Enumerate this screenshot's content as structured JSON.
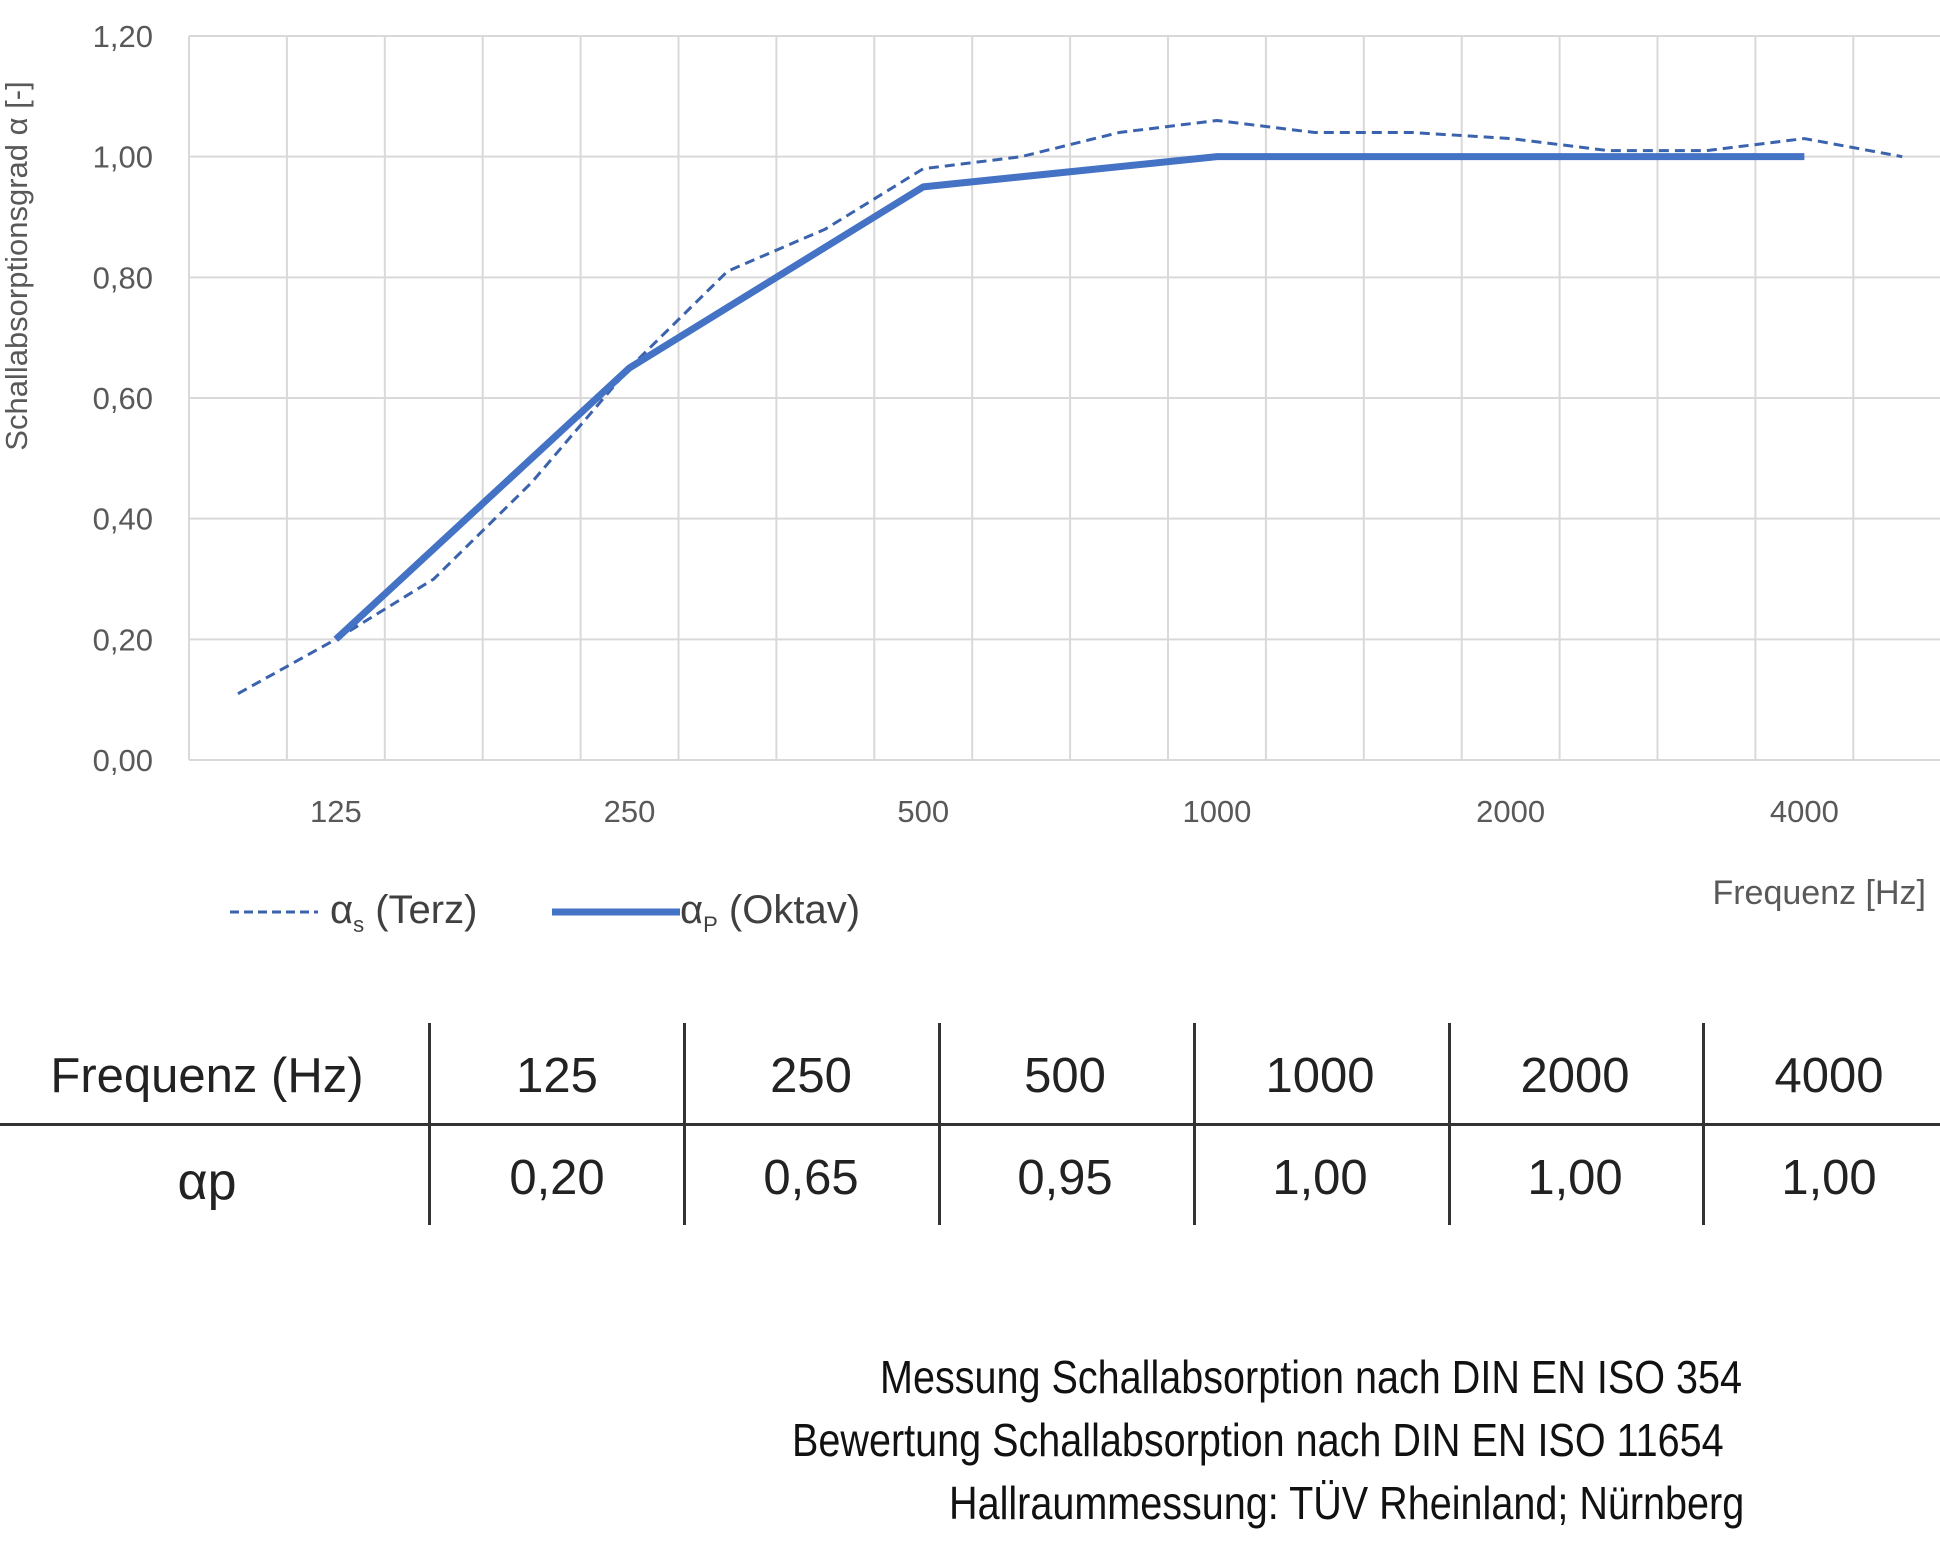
{
  "chart_data": {
    "type": "line",
    "xlabel": "Frequenz [Hz]",
    "ylabel": "Schallabsorptionsgrad α [-]",
    "ylim": [
      0,
      1.2
    ],
    "y_ticks": [
      "0,00",
      "0,20",
      "0,40",
      "0,60",
      "0,80",
      "1,00",
      "1,20"
    ],
    "x_scale": "third-octave bands (log)",
    "x_tick_labels": [
      "125",
      "250",
      "500",
      "1000",
      "2000",
      "4000"
    ],
    "grid": true,
    "legend_position": "bottom-left",
    "series": [
      {
        "name": "αs (Terz)",
        "style": "dashed",
        "color": "#3b63ad",
        "x": [
          100,
          125,
          160,
          200,
          250,
          315,
          400,
          500,
          630,
          800,
          1000,
          1250,
          1600,
          2000,
          2500,
          3150,
          4000,
          5000
        ],
        "values": [
          0.11,
          0.2,
          0.3,
          0.46,
          0.65,
          0.81,
          0.88,
          0.98,
          1.0,
          1.04,
          1.06,
          1.04,
          1.04,
          1.03,
          1.01,
          1.01,
          1.03,
          1.0
        ]
      },
      {
        "name": "αp (Oktav)",
        "style": "solid",
        "color": "#4472c4",
        "x": [
          125,
          250,
          500,
          1000,
          2000,
          4000
        ],
        "values": [
          0.2,
          0.65,
          0.95,
          1.0,
          1.0,
          1.0
        ]
      }
    ]
  },
  "legend": {
    "terz": {
      "alpha": "α",
      "sub": "s",
      "label": " (Terz)"
    },
    "oktav": {
      "alpha": "α",
      "sub": "P",
      "label": " (Oktav)"
    }
  },
  "table": {
    "header_label": "Frequenz (Hz)",
    "row_label": "αp",
    "frequencies": [
      "125",
      "250",
      "500",
      "1000",
      "2000",
      "4000"
    ],
    "values": [
      "0,20",
      "0,65",
      "0,95",
      "1,00",
      "1,00",
      "1,00"
    ]
  },
  "footer": {
    "line1": "Messung Schallabsorption nach DIN EN ISO 354",
    "line2": "Bewertung Schallabsorption nach DIN EN ISO 11654",
    "line3": "Hallraummessung: TÜV Rheinland; Nürnberg"
  }
}
